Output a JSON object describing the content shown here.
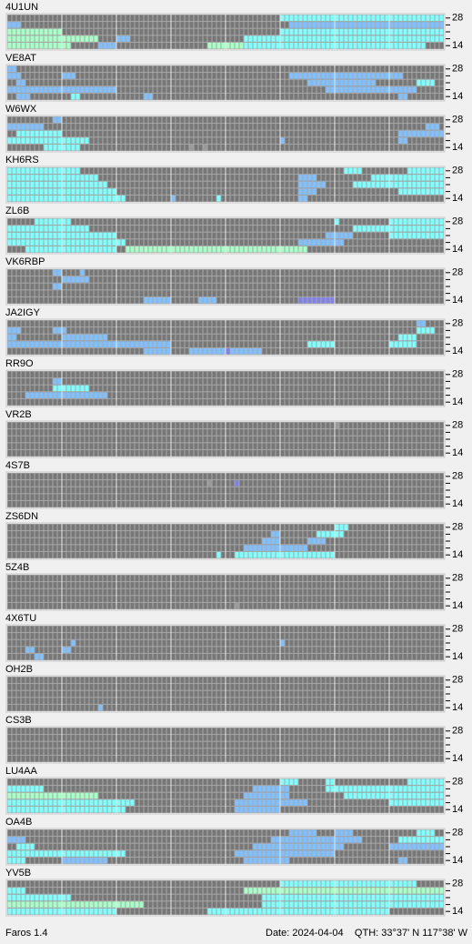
{
  "app": {
    "band_labels": [
      "28",
      "14"
    ],
    "level_colors": [
      "#9a9a9a",
      "#80c0ff",
      "#80ffff",
      "#a8ffc8",
      "#8080e8"
    ],
    "stations": [
      {
        "name": "4U1UN",
        "runs": [
          [
            0,
            60,
            36,
            2
          ],
          [
            1,
            0,
            3,
            1
          ],
          [
            1,
            62,
            34,
            1
          ],
          [
            2,
            0,
            12,
            3
          ],
          [
            2,
            60,
            36,
            2
          ],
          [
            3,
            0,
            20,
            3
          ],
          [
            3,
            24,
            3,
            1
          ],
          [
            3,
            52,
            44,
            2
          ],
          [
            4,
            0,
            14,
            3
          ],
          [
            4,
            20,
            4,
            1
          ],
          [
            4,
            44,
            8,
            3
          ],
          [
            4,
            52,
            40,
            2
          ]
        ]
      },
      {
        "name": "VE8AT",
        "runs": [
          [
            0,
            0,
            2,
            1
          ],
          [
            1,
            0,
            3,
            1
          ],
          [
            1,
            12,
            3,
            1
          ],
          [
            1,
            62,
            25,
            1
          ],
          [
            2,
            2,
            2,
            1
          ],
          [
            2,
            66,
            15,
            1
          ],
          [
            2,
            90,
            4,
            2
          ],
          [
            3,
            0,
            24,
            1
          ],
          [
            3,
            70,
            20,
            1
          ],
          [
            4,
            2,
            3,
            1
          ],
          [
            4,
            14,
            2,
            2
          ],
          [
            4,
            30,
            2,
            1
          ],
          [
            4,
            86,
            2,
            1
          ]
        ]
      },
      {
        "name": "W6WX",
        "runs": [
          [
            0,
            10,
            2,
            1
          ],
          [
            1,
            0,
            8,
            1
          ],
          [
            1,
            92,
            3,
            1
          ],
          [
            2,
            2,
            10,
            2
          ],
          [
            2,
            86,
            10,
            1
          ],
          [
            3,
            0,
            18,
            2
          ],
          [
            3,
            60,
            1,
            1
          ],
          [
            3,
            86,
            2,
            1
          ],
          [
            4,
            8,
            8,
            2
          ],
          [
            4,
            40,
            1,
            0
          ],
          [
            4,
            43,
            1,
            0
          ]
        ]
      },
      {
        "name": "KH6RS",
        "runs": [
          [
            0,
            0,
            16,
            2
          ],
          [
            0,
            74,
            4,
            2
          ],
          [
            0,
            88,
            8,
            2
          ],
          [
            1,
            0,
            20,
            2
          ],
          [
            1,
            64,
            4,
            1
          ],
          [
            1,
            80,
            16,
            2
          ],
          [
            2,
            0,
            22,
            2
          ],
          [
            2,
            64,
            6,
            1
          ],
          [
            2,
            76,
            20,
            2
          ],
          [
            3,
            0,
            24,
            2
          ],
          [
            3,
            64,
            4,
            1
          ],
          [
            3,
            86,
            10,
            2
          ],
          [
            4,
            0,
            26,
            2
          ],
          [
            4,
            36,
            1,
            1
          ],
          [
            4,
            46,
            1,
            2
          ],
          [
            4,
            64,
            2,
            1
          ]
        ]
      },
      {
        "name": "ZL6B",
        "runs": [
          [
            0,
            6,
            8,
            2
          ],
          [
            0,
            72,
            1,
            2
          ],
          [
            0,
            84,
            12,
            2
          ],
          [
            1,
            0,
            18,
            2
          ],
          [
            1,
            76,
            20,
            2
          ],
          [
            2,
            0,
            24,
            2
          ],
          [
            2,
            70,
            6,
            1
          ],
          [
            2,
            84,
            12,
            2
          ],
          [
            3,
            0,
            26,
            2
          ],
          [
            3,
            64,
            10,
            1
          ],
          [
            4,
            4,
            20,
            2
          ],
          [
            4,
            26,
            40,
            3
          ]
        ]
      },
      {
        "name": "VK6RBP",
        "runs": [
          [
            0,
            10,
            2,
            1
          ],
          [
            0,
            16,
            1,
            1
          ],
          [
            1,
            12,
            6,
            1
          ],
          [
            2,
            10,
            2,
            1
          ],
          [
            4,
            30,
            6,
            1
          ],
          [
            4,
            42,
            4,
            1
          ],
          [
            4,
            64,
            8,
            4
          ]
        ]
      },
      {
        "name": "JA2IGY",
        "runs": [
          [
            0,
            90,
            2,
            1
          ],
          [
            1,
            0,
            3,
            1
          ],
          [
            1,
            10,
            3,
            1
          ],
          [
            1,
            90,
            4,
            2
          ],
          [
            2,
            0,
            2,
            1
          ],
          [
            2,
            12,
            10,
            1
          ],
          [
            2,
            86,
            4,
            2
          ],
          [
            3,
            0,
            36,
            1
          ],
          [
            3,
            66,
            6,
            2
          ],
          [
            3,
            84,
            6,
            2
          ],
          [
            4,
            30,
            6,
            1
          ],
          [
            4,
            40,
            16,
            1
          ],
          [
            4,
            48,
            1,
            4
          ]
        ]
      },
      {
        "name": "RR9O",
        "runs": [
          [
            1,
            10,
            2,
            1
          ],
          [
            2,
            10,
            8,
            2
          ],
          [
            3,
            4,
            18,
            1
          ]
        ]
      },
      {
        "name": "VR2B",
        "runs": [
          [
            0,
            72,
            1,
            0
          ]
        ]
      },
      {
        "name": "4S7B",
        "runs": [
          [
            1,
            44,
            1,
            0
          ],
          [
            1,
            50,
            1,
            4
          ]
        ]
      },
      {
        "name": "ZS6DN",
        "runs": [
          [
            0,
            72,
            3,
            2
          ],
          [
            1,
            58,
            2,
            1
          ],
          [
            1,
            68,
            6,
            2
          ],
          [
            2,
            56,
            4,
            1
          ],
          [
            2,
            66,
            4,
            1
          ],
          [
            3,
            52,
            14,
            1
          ],
          [
            4,
            46,
            1,
            2
          ],
          [
            4,
            50,
            22,
            2
          ]
        ]
      },
      {
        "name": "5Z4B",
        "runs": [
          [
            4,
            50,
            1,
            0
          ]
        ]
      },
      {
        "name": "4X6TU",
        "runs": [
          [
            2,
            14,
            1,
            1
          ],
          [
            2,
            60,
            1,
            1
          ],
          [
            3,
            4,
            2,
            1
          ],
          [
            3,
            12,
            2,
            1
          ],
          [
            4,
            6,
            2,
            1
          ]
        ]
      },
      {
        "name": "OH2B",
        "runs": [
          [
            4,
            20,
            1,
            1
          ]
        ]
      },
      {
        "name": "CS3B",
        "runs": []
      },
      {
        "name": "LU4AA",
        "runs": [
          [
            0,
            60,
            4,
            2
          ],
          [
            0,
            70,
            2,
            2
          ],
          [
            0,
            88,
            8,
            2
          ],
          [
            1,
            0,
            8,
            2
          ],
          [
            1,
            54,
            8,
            1
          ],
          [
            1,
            70,
            26,
            2
          ],
          [
            2,
            0,
            20,
            3
          ],
          [
            2,
            52,
            10,
            1
          ],
          [
            2,
            74,
            22,
            2
          ],
          [
            3,
            0,
            28,
            2
          ],
          [
            3,
            50,
            16,
            1
          ],
          [
            3,
            84,
            12,
            2
          ],
          [
            4,
            0,
            26,
            2
          ],
          [
            4,
            50,
            10,
            1
          ]
        ]
      },
      {
        "name": "OA4B",
        "runs": [
          [
            0,
            62,
            6,
            1
          ],
          [
            0,
            72,
            4,
            1
          ],
          [
            0,
            90,
            4,
            2
          ],
          [
            1,
            0,
            4,
            1
          ],
          [
            1,
            58,
            20,
            1
          ],
          [
            1,
            86,
            10,
            2
          ],
          [
            2,
            2,
            4,
            2
          ],
          [
            2,
            54,
            20,
            1
          ],
          [
            2,
            84,
            12,
            1
          ],
          [
            3,
            0,
            26,
            2
          ],
          [
            3,
            50,
            22,
            1
          ],
          [
            4,
            0,
            4,
            2
          ],
          [
            4,
            12,
            10,
            1
          ],
          [
            4,
            52,
            10,
            1
          ],
          [
            4,
            86,
            2,
            1
          ]
        ]
      },
      {
        "name": "YV5B",
        "runs": [
          [
            0,
            60,
            30,
            2
          ],
          [
            1,
            0,
            4,
            2
          ],
          [
            1,
            52,
            44,
            3
          ],
          [
            2,
            0,
            14,
            2
          ],
          [
            2,
            56,
            40,
            2
          ],
          [
            3,
            0,
            30,
            3
          ],
          [
            3,
            56,
            40,
            2
          ],
          [
            4,
            0,
            24,
            2
          ],
          [
            4,
            44,
            40,
            2
          ]
        ]
      }
    ]
  },
  "status": {
    "version": "Faros 1.4",
    "date": "Date: 2024-04-04",
    "qth": "QTH: 33°37' N  117°38' W"
  }
}
